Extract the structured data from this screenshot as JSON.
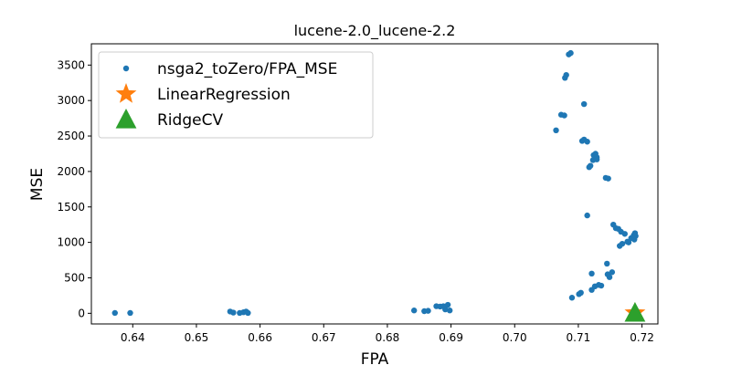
{
  "chart_data": {
    "type": "scatter",
    "title": "lucene-2.0_lucene-2.2",
    "xlabel": "FPA",
    "ylabel": "MSE",
    "xlim": [
      0.6335,
      0.7225
    ],
    "ylim": [
      -150,
      3800
    ],
    "xticks": [
      0.64,
      0.65,
      0.66,
      0.67,
      0.68,
      0.69,
      0.7,
      0.71,
      0.72
    ],
    "xtick_labels": [
      "0.64",
      "0.65",
      "0.66",
      "0.67",
      "0.68",
      "0.69",
      "0.70",
      "0.71",
      "0.72"
    ],
    "yticks": [
      0,
      500,
      1000,
      1500,
      2000,
      2500,
      3000,
      3500
    ],
    "ytick_labels": [
      "0",
      "500",
      "1000",
      "1500",
      "2000",
      "2500",
      "3000",
      "3500"
    ],
    "grid": false,
    "legend_position": "top-left",
    "series": [
      {
        "name": "nsga2_toZero/FPA_MSE",
        "marker": "circle",
        "color": "#1f77b4",
        "points": [
          [
            0.6372,
            5
          ],
          [
            0.6396,
            5
          ],
          [
            0.6553,
            25
          ],
          [
            0.6558,
            10
          ],
          [
            0.6568,
            5
          ],
          [
            0.6574,
            15
          ],
          [
            0.6578,
            25
          ],
          [
            0.6581,
            5
          ],
          [
            0.6842,
            40
          ],
          [
            0.6858,
            30
          ],
          [
            0.6864,
            35
          ],
          [
            0.6877,
            100
          ],
          [
            0.6883,
            95
          ],
          [
            0.6888,
            100
          ],
          [
            0.6891,
            55
          ],
          [
            0.6895,
            120
          ],
          [
            0.6898,
            40
          ],
          [
            0.7065,
            2580
          ],
          [
            0.7073,
            2800
          ],
          [
            0.7078,
            2790
          ],
          [
            0.7079,
            3320
          ],
          [
            0.7081,
            3360
          ],
          [
            0.7085,
            3650
          ],
          [
            0.7088,
            3670
          ],
          [
            0.709,
            220
          ],
          [
            0.7101,
            270
          ],
          [
            0.7104,
            290
          ],
          [
            0.7106,
            2430
          ],
          [
            0.7109,
            2450
          ],
          [
            0.7109,
            2950
          ],
          [
            0.7114,
            2420
          ],
          [
            0.7114,
            1380
          ],
          [
            0.7117,
            2060
          ],
          [
            0.7119,
            2080
          ],
          [
            0.7121,
            560
          ],
          [
            0.7123,
            2160
          ],
          [
            0.7121,
            330
          ],
          [
            0.7124,
            2230
          ],
          [
            0.7127,
            2250
          ],
          [
            0.7126,
            380
          ],
          [
            0.7129,
            2200
          ],
          [
            0.7129,
            2170
          ],
          [
            0.7132,
            400
          ],
          [
            0.7136,
            390
          ],
          [
            0.7143,
            1910
          ],
          [
            0.7145,
            700
          ],
          [
            0.7146,
            550
          ],
          [
            0.7147,
            1900
          ],
          [
            0.7149,
            510
          ],
          [
            0.7153,
            580
          ],
          [
            0.7155,
            1250
          ],
          [
            0.7159,
            1200
          ],
          [
            0.7163,
            1190
          ],
          [
            0.7165,
            950
          ],
          [
            0.7167,
            1150
          ],
          [
            0.7169,
            980
          ],
          [
            0.7173,
            1120
          ],
          [
            0.7177,
            1010
          ],
          [
            0.7179,
            1000
          ],
          [
            0.7183,
            1060
          ],
          [
            0.7187,
            1100
          ],
          [
            0.7188,
            1040
          ],
          [
            0.7189,
            1130
          ],
          [
            0.719,
            1090
          ]
        ]
      },
      {
        "name": "LinearRegression",
        "marker": "star",
        "color": "#ff7f0e",
        "points": [
          [
            0.7189,
            5
          ]
        ]
      },
      {
        "name": "RidgeCV",
        "marker": "triangle",
        "color": "#2ca02c",
        "points": [
          [
            0.7189,
            5
          ]
        ]
      }
    ]
  }
}
